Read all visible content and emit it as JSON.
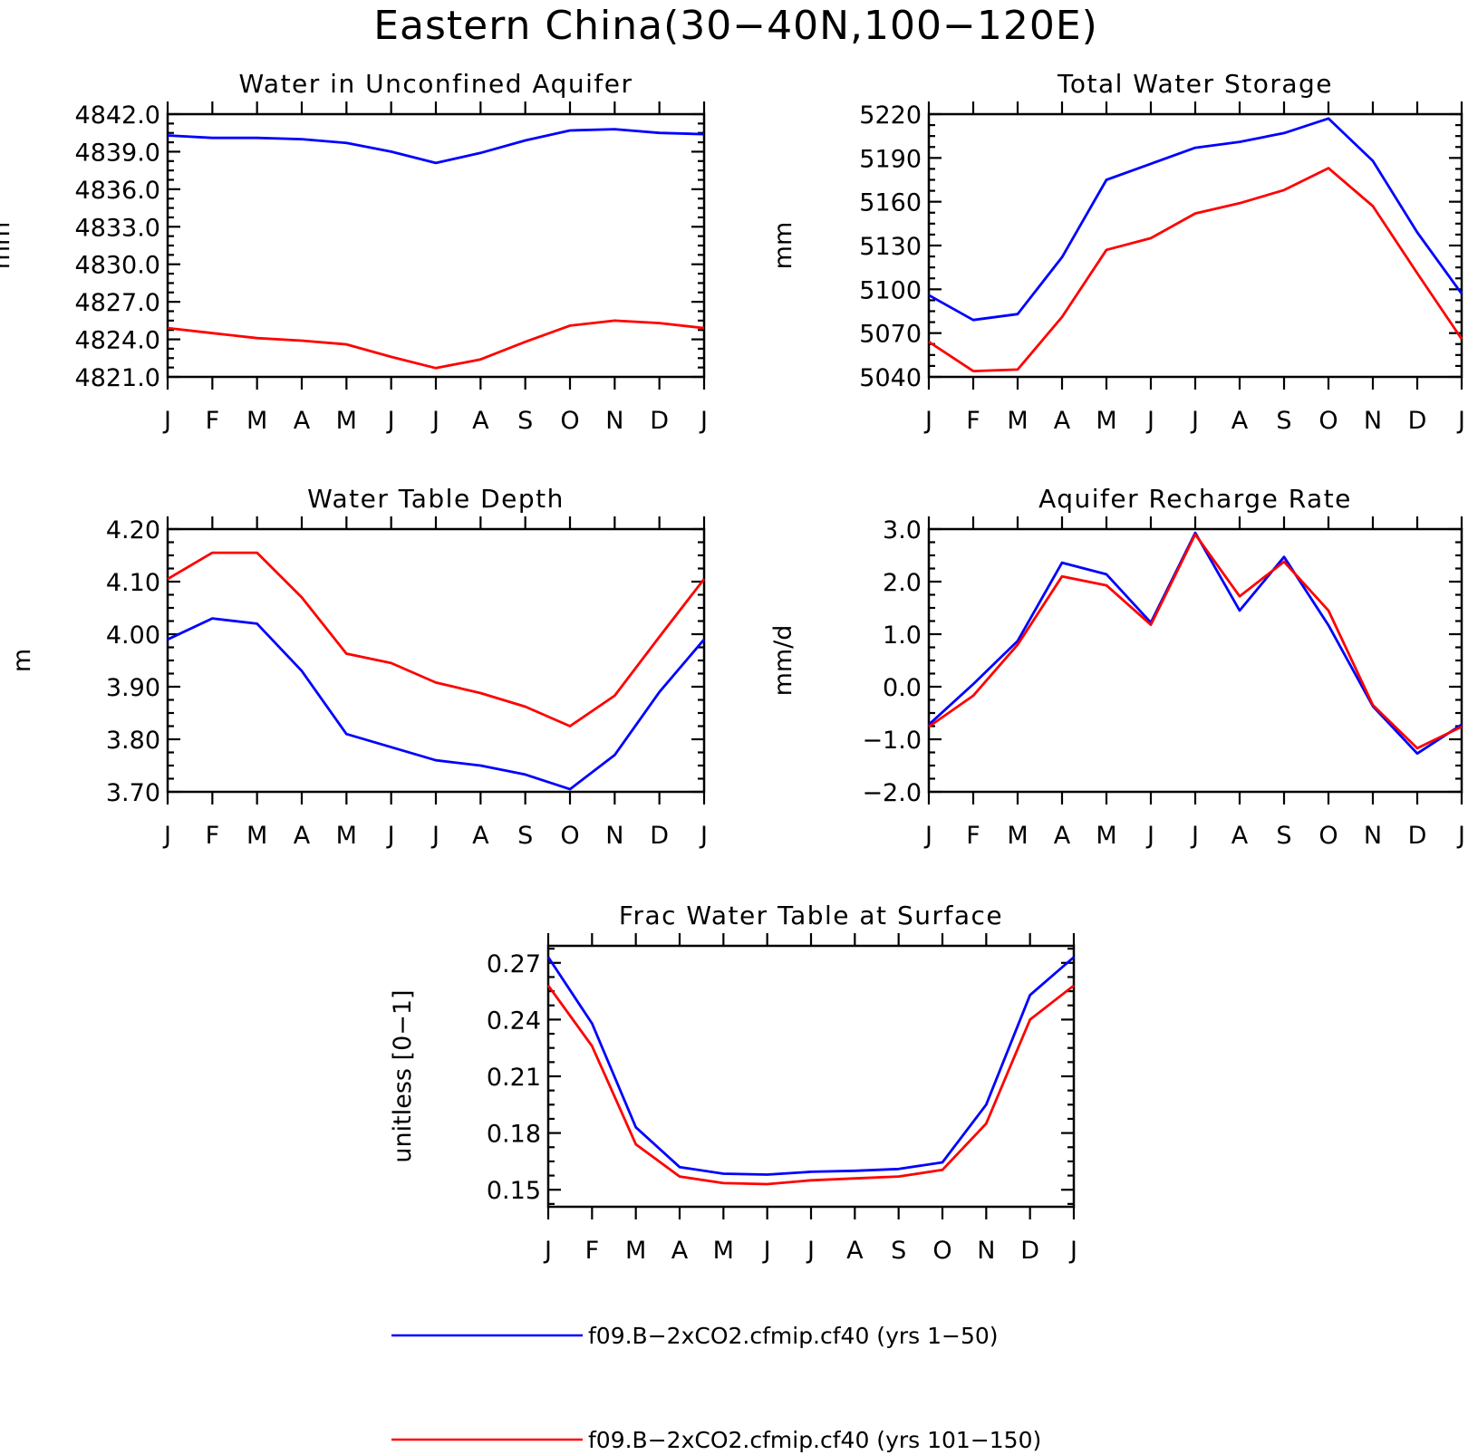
{
  "figure": {
    "title": "Eastern China(30−40N,100−120E)"
  },
  "legend": [
    {
      "label": "f09.B−2xCO2.cfmip.cf40 (yrs 1−50)",
      "color": "#0000ff"
    },
    {
      "label": "f09.B−2xCO2.cfmip.cf40 (yrs 101−150)",
      "color": "#ff0000"
    }
  ],
  "chart_data": [
    {
      "type": "line",
      "title": "Water in Unconfined Aquifer",
      "ylabel": "mm",
      "categories": [
        "J",
        "F",
        "M",
        "A",
        "M",
        "J",
        "J",
        "A",
        "S",
        "O",
        "N",
        "D",
        "J"
      ],
      "ylim": [
        4821.0,
        4842.0
      ],
      "yticks": [
        "4821.0",
        "4824.0",
        "4827.0",
        "4830.0",
        "4833.0",
        "4836.0",
        "4839.0",
        "4842.0"
      ],
      "series": [
        {
          "color": "#0000ff",
          "values": [
            4840.3,
            4840.1,
            4840.1,
            4840.0,
            4839.7,
            4839.0,
            4838.1,
            4838.9,
            4839.9,
            4840.7,
            4840.8,
            4840.5,
            4840.4
          ]
        },
        {
          "color": "#ff0000",
          "values": [
            4824.9,
            4824.5,
            4824.1,
            4823.9,
            4823.6,
            4822.6,
            4821.7,
            4822.4,
            4823.8,
            4825.1,
            4825.5,
            4825.3,
            4824.9
          ]
        }
      ]
    },
    {
      "type": "line",
      "title": "Total Water Storage",
      "ylabel": "mm",
      "categories": [
        "J",
        "F",
        "M",
        "A",
        "M",
        "J",
        "J",
        "A",
        "S",
        "O",
        "N",
        "D",
        "J"
      ],
      "ylim": [
        5040,
        5220
      ],
      "yticks": [
        "5040",
        "5070",
        "5100",
        "5130",
        "5160",
        "5190",
        "5220"
      ],
      "series": [
        {
          "color": "#0000ff",
          "values": [
            5096,
            5079,
            5083,
            5122,
            5175,
            5186,
            5197,
            5201,
            5207,
            5217,
            5188,
            5139,
            5097
          ]
        },
        {
          "color": "#ff0000",
          "values": [
            5064,
            5044,
            5045,
            5081,
            5127,
            5135,
            5152,
            5159,
            5168,
            5183,
            5157,
            5111,
            5066
          ]
        }
      ]
    },
    {
      "type": "line",
      "title": "Water Table Depth",
      "ylabel": "m",
      "categories": [
        "J",
        "F",
        "M",
        "A",
        "M",
        "J",
        "J",
        "A",
        "S",
        "O",
        "N",
        "D",
        "J"
      ],
      "ylim": [
        3.7,
        4.2
      ],
      "yticks": [
        "3.70",
        "3.80",
        "3.90",
        "4.00",
        "4.10",
        "4.20"
      ],
      "series": [
        {
          "color": "#0000ff",
          "values": [
            3.99,
            4.03,
            4.02,
            3.93,
            3.81,
            3.785,
            3.76,
            3.75,
            3.733,
            3.705,
            3.77,
            3.89,
            3.99
          ]
        },
        {
          "color": "#ff0000",
          "values": [
            4.105,
            4.155,
            4.155,
            4.07,
            3.963,
            3.945,
            3.908,
            3.888,
            3.862,
            3.825,
            3.883,
            3.995,
            4.105
          ]
        }
      ]
    },
    {
      "type": "line",
      "title": "Aquifer Recharge Rate",
      "ylabel": "mm/d",
      "categories": [
        "J",
        "F",
        "M",
        "A",
        "M",
        "J",
        "J",
        "A",
        "S",
        "O",
        "N",
        "D",
        "J"
      ],
      "ylim": [
        -2.0,
        3.0
      ],
      "yticks": [
        "−2.0",
        "−1.0",
        "0.0",
        "1.0",
        "2.0",
        "3.0"
      ],
      "series": [
        {
          "color": "#0000ff",
          "values": [
            -0.72,
            0.05,
            0.87,
            2.36,
            2.14,
            1.22,
            2.93,
            1.45,
            2.47,
            1.17,
            -0.37,
            -1.27,
            -0.72
          ]
        },
        {
          "color": "#ff0000",
          "values": [
            -0.76,
            -0.17,
            0.8,
            2.1,
            1.93,
            1.18,
            2.9,
            1.72,
            2.38,
            1.45,
            -0.35,
            -1.17,
            -0.76
          ]
        }
      ]
    },
    {
      "type": "line",
      "title": "Frac Water Table at Surface",
      "ylabel": "unitless [0−1]",
      "categories": [
        "J",
        "F",
        "M",
        "A",
        "M",
        "J",
        "J",
        "A",
        "S",
        "O",
        "N",
        "D",
        "J"
      ],
      "ylim": [
        0.141,
        0.279
      ],
      "yticks": [
        "0.15",
        "0.18",
        "0.21",
        "0.24",
        "0.27"
      ],
      "series": [
        {
          "color": "#0000ff",
          "values": [
            0.273,
            0.238,
            0.183,
            0.162,
            0.1585,
            0.158,
            0.1595,
            0.16,
            0.161,
            0.1645,
            0.195,
            0.253,
            0.273
          ]
        },
        {
          "color": "#ff0000",
          "values": [
            0.258,
            0.226,
            0.174,
            0.157,
            0.1535,
            0.153,
            0.155,
            0.156,
            0.157,
            0.1605,
            0.185,
            0.24,
            0.258
          ]
        }
      ]
    }
  ]
}
